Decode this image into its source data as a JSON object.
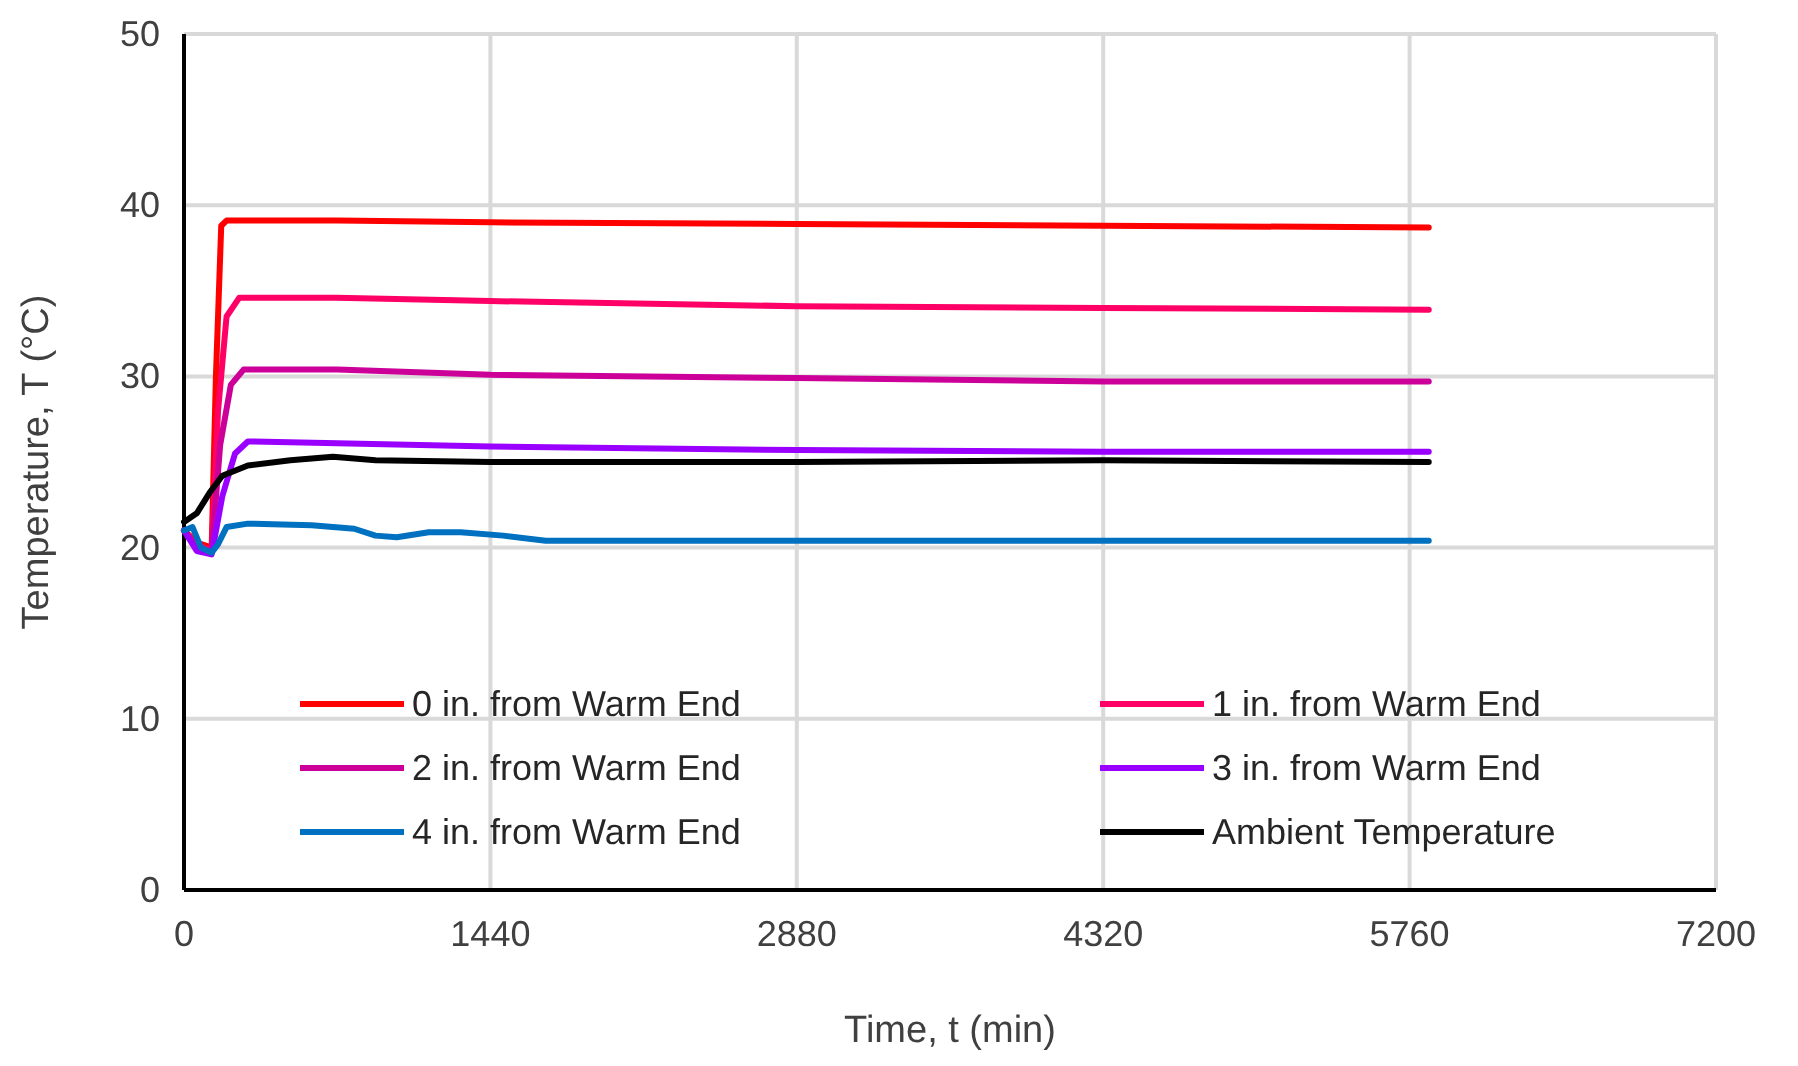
{
  "chart_data": {
    "type": "line",
    "xlabel": "Time, t (min)",
    "ylabel": "Temperature, T (°C)",
    "xlim": [
      0,
      7200
    ],
    "xticks": [
      0,
      1440,
      2880,
      4320,
      5760,
      7200
    ],
    "ylim": [
      0,
      50
    ],
    "yticks": [
      0,
      10,
      20,
      30,
      40,
      50
    ],
    "grid": true,
    "legend": "bottom",
    "marker": "none",
    "series": [
      {
        "name": "0 in. from Warm End",
        "color": "#ff0000",
        "x": [
          0,
          60,
          130,
          150,
          175,
          200,
          720,
          1440,
          2880,
          4320,
          5850
        ],
        "values": [
          21,
          20.3,
          20,
          30,
          38.8,
          39.1,
          39.1,
          39,
          38.9,
          38.8,
          38.7
        ]
      },
      {
        "name": "1 in. from Warm End",
        "color": "#ff0066",
        "x": [
          0,
          60,
          130,
          160,
          200,
          260,
          720,
          1440,
          2880,
          4320,
          5850
        ],
        "values": [
          21,
          20.2,
          19.8,
          28,
          33.5,
          34.6,
          34.6,
          34.4,
          34.1,
          34,
          33.9
        ]
      },
      {
        "name": "2 in. from Warm End",
        "color": "#cc0099",
        "x": [
          0,
          60,
          130,
          170,
          220,
          280,
          720,
          1440,
          2880,
          4320,
          5850
        ],
        "values": [
          21,
          20,
          19.7,
          26,
          29.5,
          30.4,
          30.4,
          30.1,
          29.9,
          29.7,
          29.7
        ]
      },
      {
        "name": "3 in. from Warm End",
        "color": "#9900ff",
        "x": [
          0,
          60,
          130,
          180,
          240,
          300,
          720,
          1440,
          2880,
          4320,
          5850
        ],
        "values": [
          21,
          19.8,
          19.6,
          23,
          25.5,
          26.2,
          26.1,
          25.9,
          25.7,
          25.6,
          25.6
        ]
      },
      {
        "name": "4 in. from Warm End",
        "color": "#0070c0",
        "x": [
          0,
          40,
          80,
          130,
          160,
          200,
          300,
          600,
          800,
          900,
          1000,
          1150,
          1300,
          1500,
          1700,
          2880,
          4320,
          5850
        ],
        "values": [
          21,
          21.2,
          20,
          19.7,
          20.2,
          21.2,
          21.4,
          21.3,
          21.1,
          20.7,
          20.6,
          20.9,
          20.9,
          20.7,
          20.4,
          20.4,
          20.4,
          20.4
        ]
      },
      {
        "name": "Ambient Temperature",
        "color": "#000000",
        "x": [
          0,
          60,
          120,
          180,
          300,
          500,
          700,
          900,
          1440,
          2880,
          4320,
          5850
        ],
        "values": [
          21.5,
          22,
          23.2,
          24.2,
          24.8,
          25.1,
          25.3,
          25.1,
          25,
          25,
          25.1,
          25
        ]
      }
    ]
  }
}
